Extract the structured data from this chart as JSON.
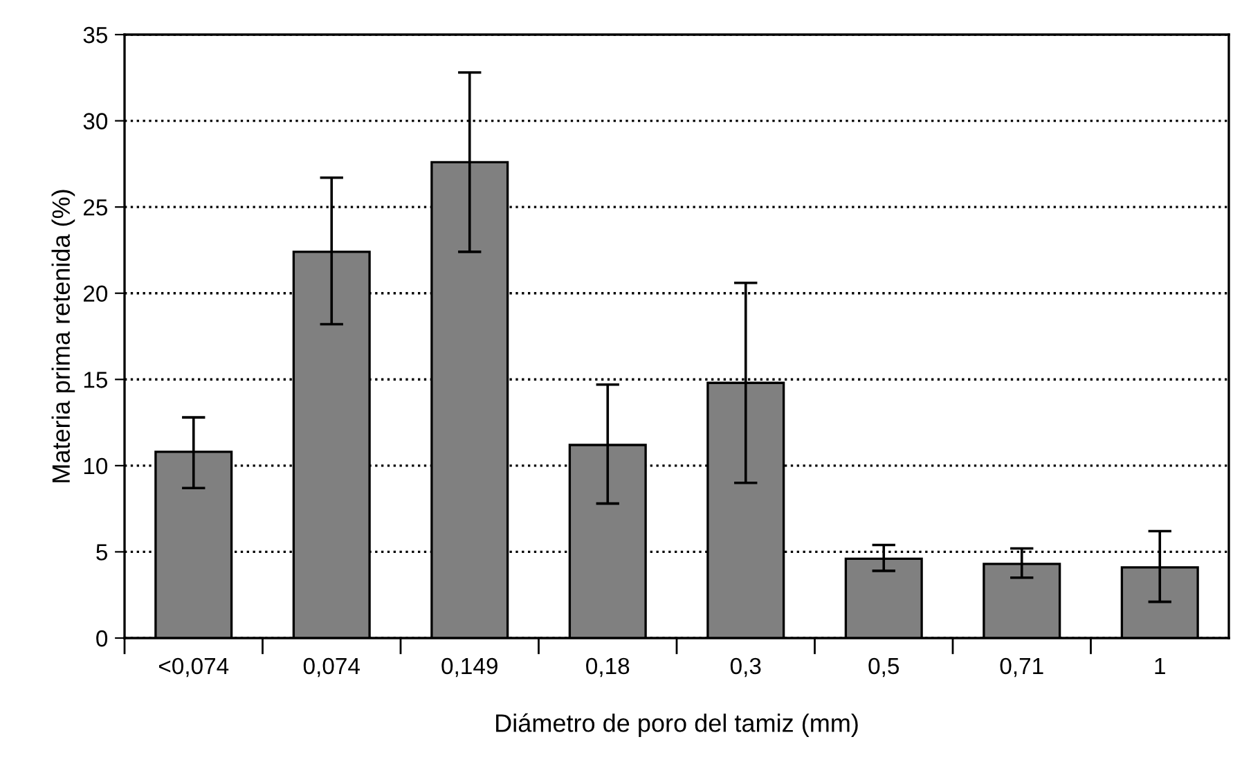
{
  "chart_data": {
    "type": "bar",
    "xlabel": "Diámetro de poro del tamiz (mm)",
    "ylabel": "Materia prima retenida (%)",
    "categories": [
      "<0,074",
      "0,074",
      "0,149",
      "0,18",
      "0,3",
      "0,5",
      "0,71",
      "1"
    ],
    "values": [
      10.8,
      22.4,
      27.6,
      11.2,
      14.8,
      4.6,
      4.3,
      4.1
    ],
    "errors": [
      [
        8.7,
        12.8
      ],
      [
        18.2,
        26.7
      ],
      [
        22.4,
        32.8
      ],
      [
        7.8,
        14.7
      ],
      [
        9.0,
        20.6
      ],
      [
        3.9,
        5.4
      ],
      [
        3.5,
        5.2
      ],
      [
        2.1,
        6.2
      ]
    ],
    "color": "#808080",
    "ylim": [
      0,
      35
    ],
    "yticks": [
      0,
      5,
      10,
      15,
      20,
      25,
      30,
      35
    ],
    "grid": "y",
    "line_style": "dotted"
  }
}
